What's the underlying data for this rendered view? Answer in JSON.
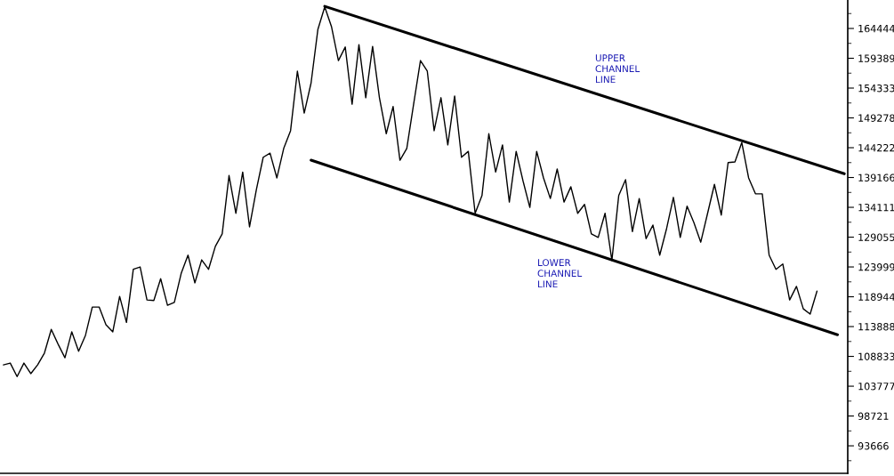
{
  "chart_data": {
    "type": "line",
    "categories": [
      null,
      null,
      null,
      null,
      null,
      null,
      null,
      null,
      null,
      null,
      null,
      null,
      null,
      null,
      null,
      null,
      null,
      null,
      null,
      null,
      null,
      null,
      null,
      null,
      null,
      null,
      null,
      null,
      null,
      null,
      null,
      null,
      null,
      null,
      null,
      null,
      null,
      null,
      null,
      null,
      null,
      null,
      null,
      null,
      null,
      null,
      null,
      null,
      null,
      null,
      null,
      null,
      null,
      null,
      null,
      null,
      null,
      null,
      null,
      null,
      null,
      null,
      null,
      null,
      null,
      null,
      null,
      null,
      null,
      null,
      null,
      null,
      null,
      null,
      null,
      null,
      null,
      null,
      null,
      null,
      null,
      null,
      null,
      null,
      null,
      null,
      null,
      null,
      null,
      null,
      null,
      null,
      null,
      null,
      null,
      null,
      null,
      null,
      null,
      null,
      null,
      null,
      null,
      null,
      null,
      null,
      null,
      null,
      null,
      null,
      null,
      null,
      null,
      null,
      null,
      null,
      null,
      null,
      null,
      null,
      null,
      null,
      null,
      null
    ],
    "series": [
      {
        "color": "#000000",
        "values": [
          107400,
          107700,
          105400,
          107700,
          105900,
          107400,
          109400,
          113400,
          110900,
          108600,
          113000,
          109700,
          112400,
          117200,
          117200,
          114200,
          113000,
          119000,
          114600,
          123600,
          124000,
          118400,
          118300,
          122000,
          117500,
          118000,
          122900,
          126000,
          121300,
          125200,
          123600,
          127500,
          129600,
          139500,
          133100,
          140100,
          130800,
          137100,
          142600,
          143300,
          139100,
          144100,
          147100,
          157200,
          150100,
          155200,
          164300,
          168100,
          164700,
          159000,
          161300,
          151600,
          161700,
          152700,
          161400,
          152700,
          146600,
          151200,
          142100,
          144100,
          151600,
          159000,
          157200,
          147100,
          152700,
          144700,
          153000,
          142600,
          143600,
          133100,
          136100,
          146600,
          140100,
          144700,
          135000,
          143600,
          138600,
          134100,
          143600,
          139100,
          135600,
          140600,
          135000,
          137600,
          133100,
          134600,
          129600,
          129000,
          133100,
          125100,
          136100,
          138800,
          130000,
          135600,
          128800,
          131100,
          126000,
          130500,
          135800,
          129000,
          134300,
          131500,
          128200,
          133100,
          138000,
          132800,
          141700,
          141800,
          145100,
          139100,
          136400,
          136400,
          126000,
          123600,
          124500,
          118400,
          120700,
          116900,
          116000,
          119900,
          null,
          null,
          null,
          null
        ]
      },
      {
        "type": "line",
        "color": "#000000",
        "values": [
          null,
          null,
          null,
          null,
          null,
          null,
          null,
          null,
          null,
          null,
          null,
          null,
          null,
          null,
          null,
          null,
          null,
          null,
          null,
          null,
          null,
          null,
          null,
          null,
          null,
          null,
          null,
          null,
          null,
          null,
          null,
          null,
          null,
          null,
          null,
          null,
          null,
          null,
          null,
          null,
          null,
          null,
          null,
          null,
          null,
          null,
          null,
          168200,
          null,
          null,
          null,
          null,
          null,
          null,
          null,
          null,
          null,
          null,
          null,
          null,
          null,
          null,
          null,
          null,
          null,
          null,
          null,
          null,
          null,
          null,
          null,
          null,
          null,
          null,
          null,
          null,
          null,
          null,
          null,
          null,
          null,
          null,
          null,
          null,
          null,
          null,
          null,
          null,
          null,
          null,
          null,
          null,
          null,
          null,
          null,
          null,
          null,
          null,
          null,
          null,
          null,
          null,
          null,
          null,
          null,
          null,
          null,
          null,
          null,
          null,
          null,
          null,
          null,
          null,
          null,
          null,
          null,
          null,
          null,
          null,
          null,
          null,
          null,
          139800
        ]
      },
      {
        "type": "line",
        "color": "#000000",
        "values": [
          null,
          null,
          null,
          null,
          null,
          null,
          null,
          null,
          null,
          null,
          null,
          null,
          null,
          null,
          null,
          null,
          null,
          null,
          null,
          null,
          null,
          null,
          null,
          null,
          null,
          null,
          null,
          null,
          null,
          null,
          null,
          null,
          null,
          null,
          null,
          null,
          null,
          null,
          null,
          null,
          null,
          null,
          null,
          null,
          null,
          142100,
          null,
          null,
          null,
          null,
          null,
          null,
          null,
          null,
          null,
          null,
          null,
          null,
          null,
          null,
          null,
          null,
          null,
          null,
          null,
          null,
          null,
          null,
          null,
          null,
          null,
          null,
          null,
          null,
          null,
          null,
          null,
          null,
          null,
          null,
          null,
          null,
          null,
          null,
          null,
          null,
          null,
          null,
          null,
          null,
          null,
          null,
          null,
          null,
          null,
          null,
          null,
          null,
          null,
          null,
          null,
          null,
          null,
          null,
          null,
          null,
          null,
          null,
          null,
          null,
          null,
          null,
          null,
          null,
          null,
          null,
          null,
          null,
          null,
          null,
          null,
          null,
          112500,
          null
        ]
      }
    ],
    "ylim": [
      89000,
      169270
    ],
    "yticks": [
      93666,
      98721,
      103777,
      108833,
      113888,
      118944,
      123999,
      129055,
      134111,
      139166,
      144222,
      149278,
      154333,
      159389,
      164444
    ],
    "tick_labels": "y",
    "grid": false,
    "legend": false,
    "annotations": [
      "UPPER\nCHANNEL\nLINE",
      "LOWER\nCHANNEL\nLINE"
    ]
  }
}
